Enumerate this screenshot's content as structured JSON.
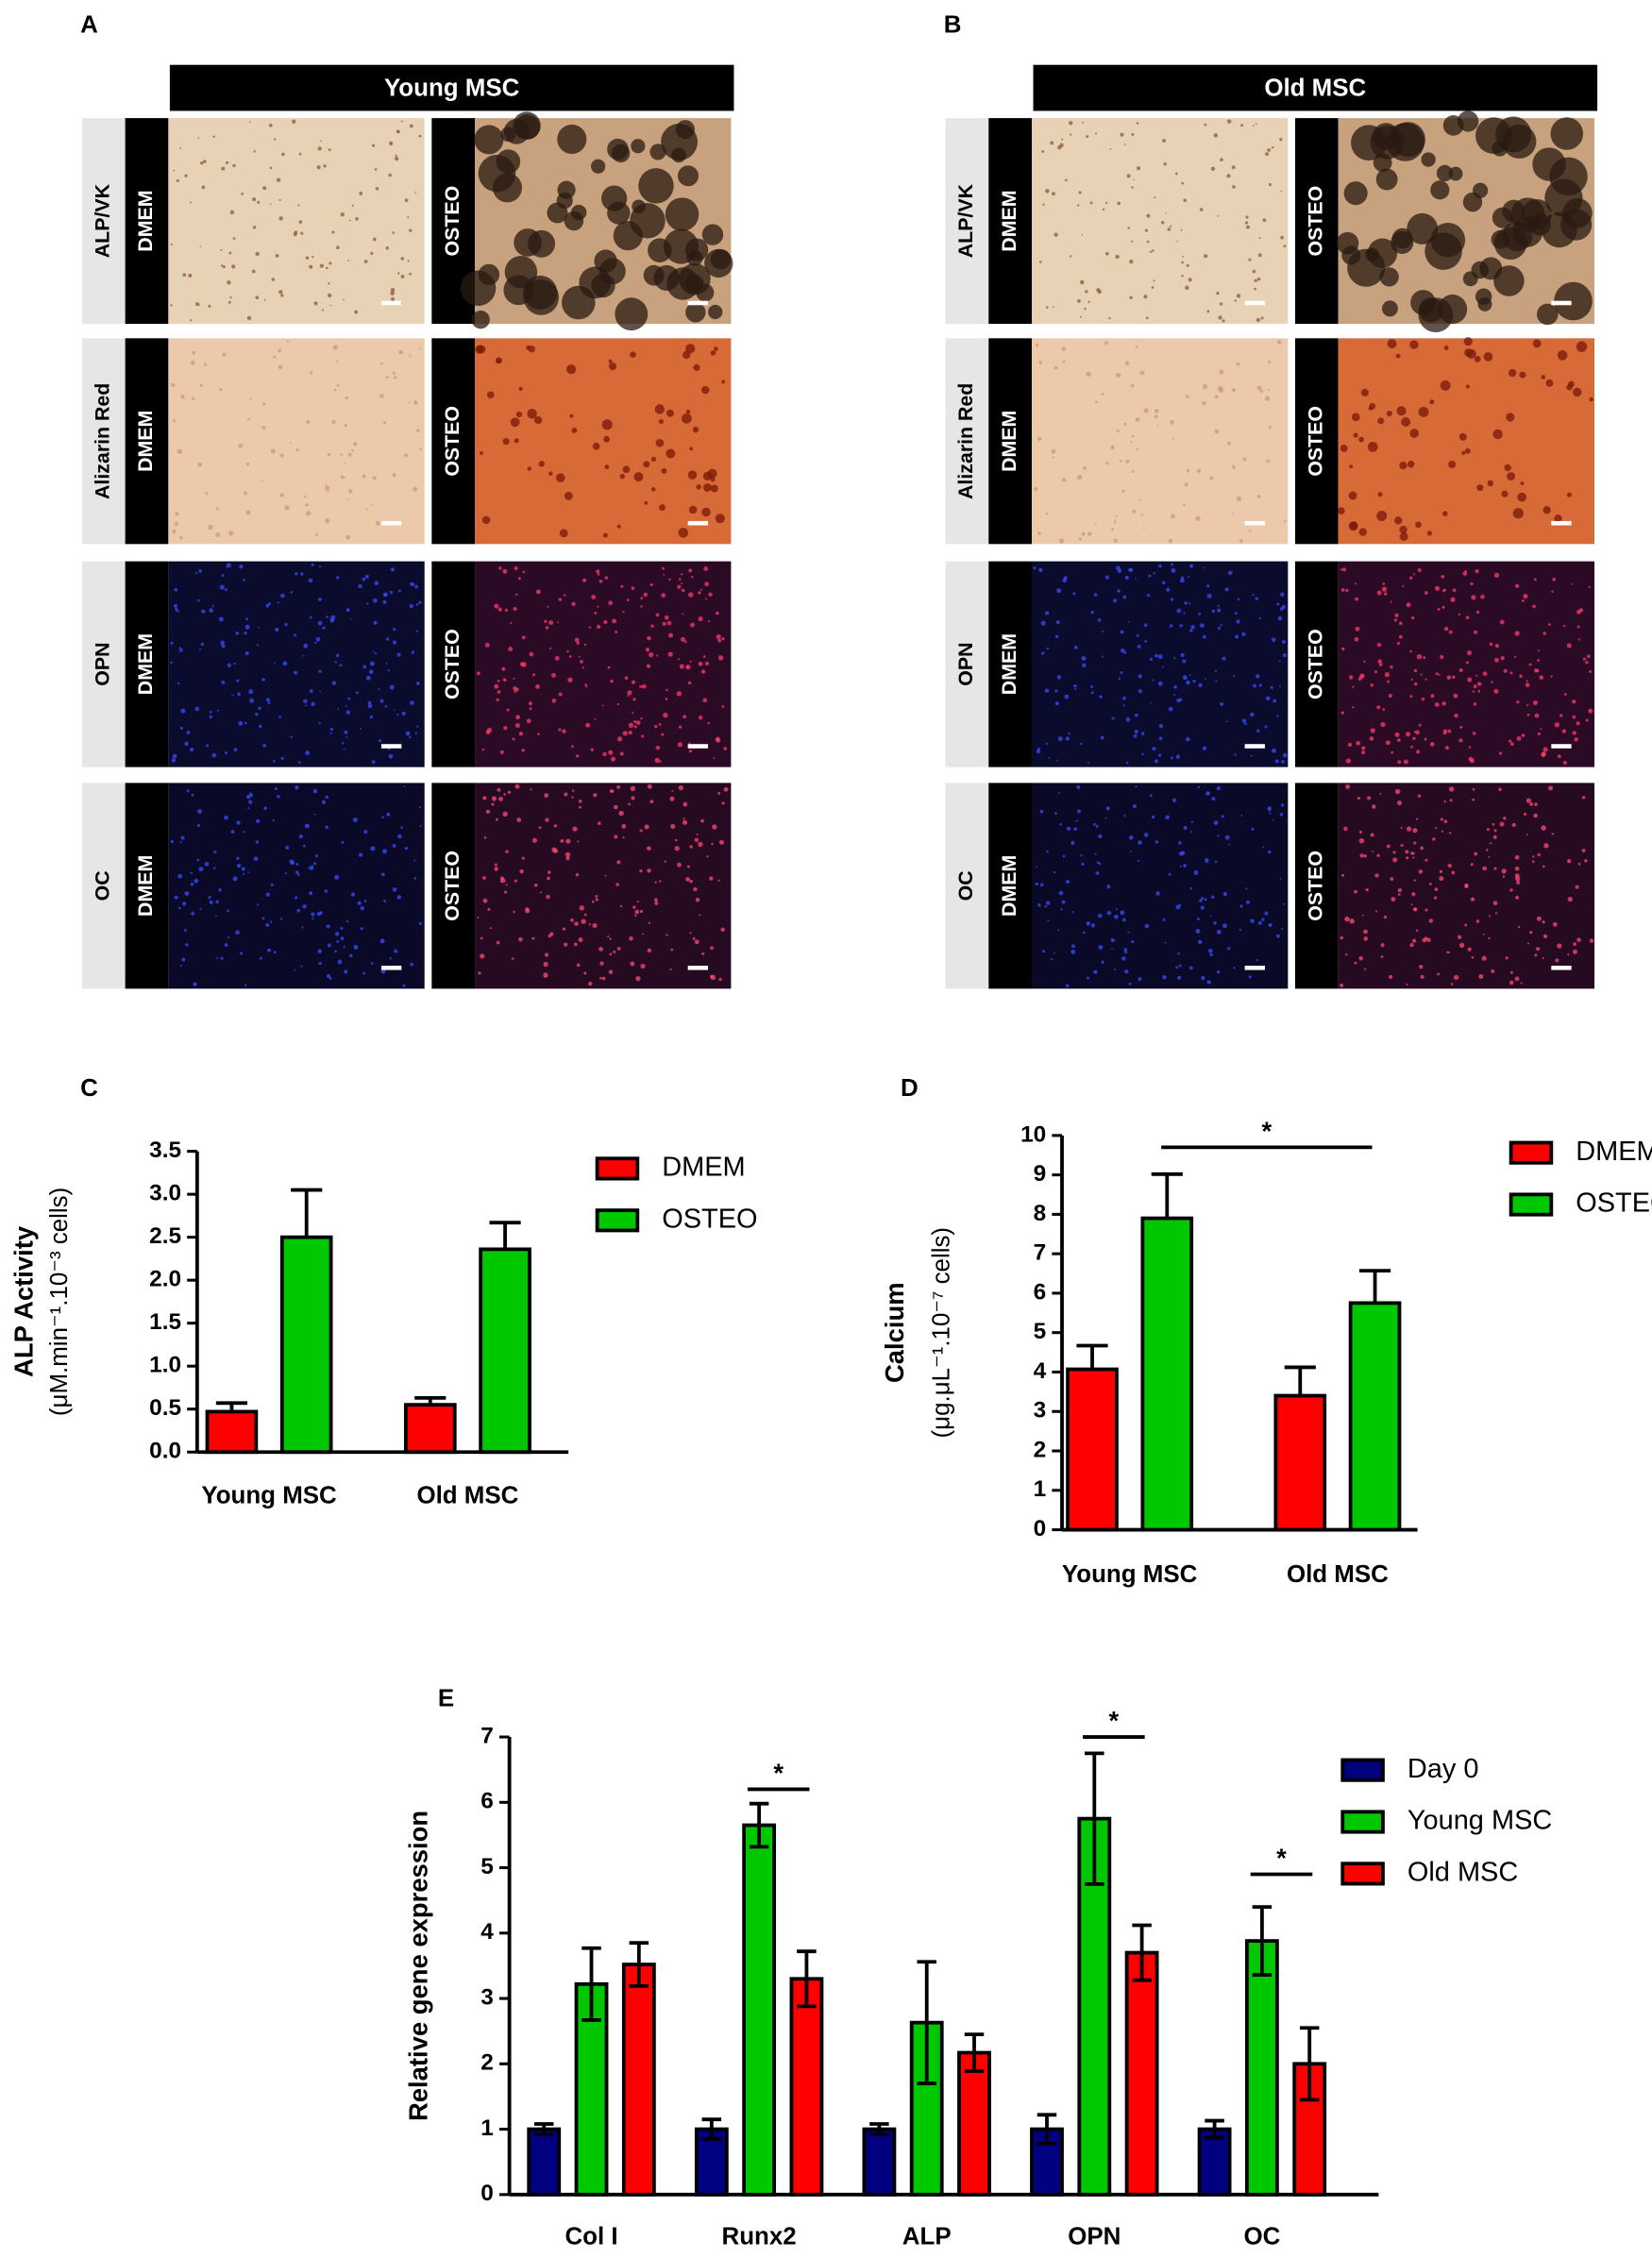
{
  "panels": [
    {
      "letter": "A",
      "title": "Young MSC"
    },
    {
      "letter": "B",
      "title": "Old MSC"
    }
  ],
  "stains": [
    "ALP/VK",
    "Alizarin Red",
    "OPN",
    "OC"
  ],
  "conditions": [
    "DMEM",
    "OSTEO"
  ],
  "chart_data": [
    {
      "type": "bar",
      "letter": "C",
      "y_label": "ALP Activity",
      "y_label_units": "(μM.min⁻¹.10⁻³ cells)",
      "categories": [
        "Young MSC",
        "Old MSC"
      ],
      "error_style": "up",
      "series": [
        {
          "name": "DMEM",
          "color": "#ff0000",
          "values": [
            0.47,
            0.55
          ],
          "errors": [
            0.1,
            0.08
          ]
        },
        {
          "name": "OSTEO",
          "color": "#00c800",
          "values": [
            2.5,
            2.36
          ],
          "errors": [
            0.55,
            0.31
          ]
        }
      ],
      "ylim": [
        0,
        3.5
      ],
      "yticks": [
        {
          "value": 0,
          "label": "0.0"
        },
        0.5,
        {
          "value": 1,
          "label": "1.0"
        },
        1.5,
        {
          "value": 2,
          "label": "2.0"
        },
        2.5,
        {
          "value": 3,
          "label": "3.0"
        },
        3.5
      ],
      "legend": "right",
      "annotations": []
    },
    {
      "type": "bar",
      "letter": "D",
      "y_label": "Calcium",
      "y_label_units": "(μg.μL⁻¹.10⁻⁷ cells)",
      "categories": [
        "Young MSC",
        "Old MSC"
      ],
      "error_style": "up",
      "series": [
        {
          "name": "DMEM",
          "color": "#ff0000",
          "values": [
            4.07,
            3.4
          ],
          "errors": [
            0.6,
            0.72
          ]
        },
        {
          "name": "OSTEO",
          "color": "#00c800",
          "values": [
            7.9,
            5.75
          ],
          "errors": [
            1.12,
            0.82
          ]
        }
      ],
      "ylim": [
        0,
        10
      ],
      "yticks": [
        0,
        1,
        2,
        3,
        4,
        5,
        6,
        7,
        8,
        9,
        10
      ],
      "legend": "right",
      "annotations": [
        {
          "text": "*",
          "y": 9.7
        }
      ]
    },
    {
      "type": "bar",
      "letter": "E",
      "y_label": "Relative gene expression",
      "categories": [
        "Col I",
        "Runx2",
        "ALP",
        "OPN",
        "OC"
      ],
      "error_style": "both",
      "series": [
        {
          "name": "Day 0",
          "color": "#000080",
          "values": [
            1,
            1,
            1,
            1,
            1
          ],
          "errors": [
            0.08,
            0.15,
            0.08,
            0.22,
            0.13
          ]
        },
        {
          "name": "Young MSC",
          "color": "#00c800",
          "values": [
            3.22,
            5.65,
            2.63,
            5.75,
            3.88
          ],
          "errors": [
            0.55,
            0.33,
            0.93,
            1.0,
            0.52
          ]
        },
        {
          "name": "Old MSC",
          "color": "#ff0000",
          "values": [
            3.52,
            3.3,
            2.17,
            3.7,
            2.0
          ],
          "errors": [
            0.33,
            0.42,
            0.28,
            0.42,
            0.55
          ]
        }
      ],
      "ylim": [
        0,
        7
      ],
      "yticks": [
        0,
        1,
        2,
        3,
        4,
        5,
        6,
        7
      ],
      "legend": "right",
      "annotations": [
        {
          "text": "*",
          "category": "Runx2",
          "y": 6.2
        },
        {
          "text": "*",
          "category": "OPN",
          "y": 7.0
        },
        {
          "text": "*",
          "category": "OC",
          "y": 4.9
        }
      ]
    }
  ]
}
